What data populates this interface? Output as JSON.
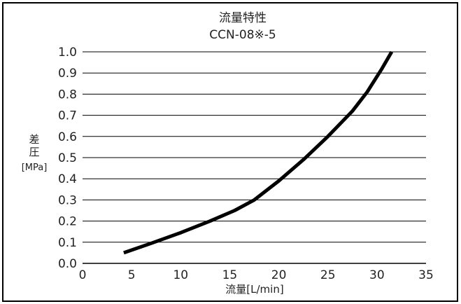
{
  "chart_data": {
    "type": "line",
    "title": "流量特性",
    "subtitle": "CCN-08※-5",
    "xlabel": "流量[L/min]",
    "ylabel_lines": [
      "差",
      "圧",
      "[MPa]"
    ],
    "xlim": [
      0,
      35
    ],
    "ylim": [
      0,
      1.0
    ],
    "x_ticks": [
      "0",
      "5",
      "10",
      "15",
      "20",
      "25",
      "30",
      "35"
    ],
    "y_ticks": [
      "0.0",
      "0.1",
      "0.2",
      "0.3",
      "0.4",
      "0.5",
      "0.6",
      "0.7",
      "0.8",
      "0.9",
      "1.0"
    ],
    "grid": "horizontal",
    "series": [
      {
        "x": [
          4.2,
          7,
          10,
          13,
          15.5,
          17.5,
          20,
          22.5,
          25,
          27.5,
          29,
          30.5,
          31.5
        ],
        "y": [
          0.05,
          0.095,
          0.145,
          0.2,
          0.25,
          0.3,
          0.39,
          0.49,
          0.6,
          0.72,
          0.81,
          0.92,
          1.0
        ]
      }
    ],
    "colors": {
      "line": "#000000",
      "grid": "#000000",
      "frame": "#000000"
    }
  }
}
